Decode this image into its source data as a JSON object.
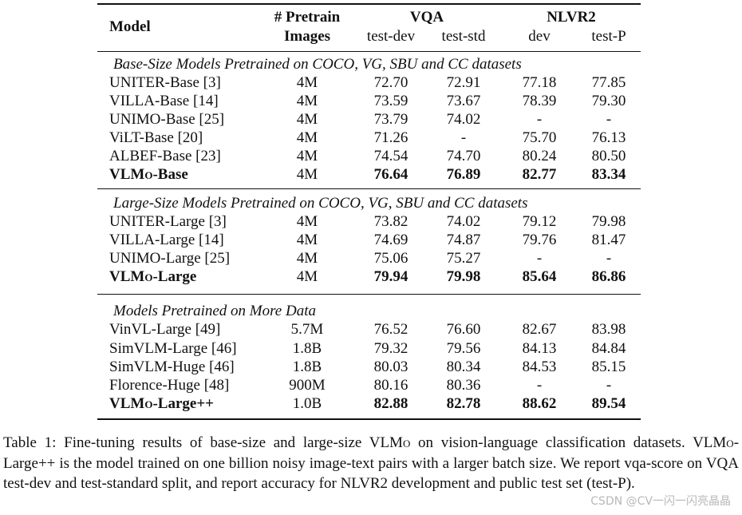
{
  "table": {
    "header": {
      "model": "Model",
      "pretrain_line1": "# Pretrain",
      "pretrain_line2": "Images",
      "vqa": "VQA",
      "nlvr2": "NLVR2",
      "vqa_test_dev": "test-dev",
      "vqa_test_std": "test-std",
      "nlvr2_dev": "dev",
      "nlvr2_test_p": "test-P"
    },
    "sections": [
      {
        "title": "Base-Size Models Pretrained on COCO, VG, SBU and CC datasets",
        "rows": [
          {
            "model": "UNITER-Base [3]",
            "pretrain": "4M",
            "test_dev": "72.70",
            "test_std": "72.91",
            "dev": "77.18",
            "test_p": "77.85"
          },
          {
            "model": "VILLA-Base [14]",
            "pretrain": "4M",
            "test_dev": "73.59",
            "test_std": "73.67",
            "dev": "78.39",
            "test_p": "79.30"
          },
          {
            "model": "UNIMO-Base [25]",
            "pretrain": "4M",
            "test_dev": "73.79",
            "test_std": "74.02",
            "dev": "-",
            "test_p": "-"
          },
          {
            "model": "ViLT-Base [20]",
            "pretrain": "4M",
            "test_dev": "71.26",
            "test_std": "-",
            "dev": "75.70",
            "test_p": "76.13"
          },
          {
            "model": "ALBEF-Base [23]",
            "pretrain": "4M",
            "test_dev": "74.54",
            "test_std": "74.70",
            "dev": "80.24",
            "test_p": "80.50"
          },
          {
            "model_prefix": "VLM",
            "model_sc": "o",
            "model_suffix": "-Base",
            "pretrain": "4M",
            "test_dev": "76.64",
            "test_std": "76.89",
            "dev": "82.77",
            "test_p": "83.34"
          }
        ]
      },
      {
        "title": "Large-Size Models Pretrained on COCO, VG, SBU and CC datasets",
        "rows": [
          {
            "model": "UNITER-Large [3]",
            "pretrain": "4M",
            "test_dev": "73.82",
            "test_std": "74.02",
            "dev": "79.12",
            "test_p": "79.98"
          },
          {
            "model": "VILLA-Large [14]",
            "pretrain": "4M",
            "test_dev": "74.69",
            "test_std": "74.87",
            "dev": "79.76",
            "test_p": "81.47"
          },
          {
            "model": "UNIMO-Large [25]",
            "pretrain": "4M",
            "test_dev": "75.06",
            "test_std": "75.27",
            "dev": "-",
            "test_p": "-"
          },
          {
            "model_prefix": "VLM",
            "model_sc": "o",
            "model_suffix": "-Large",
            "pretrain": "4M",
            "test_dev": "79.94",
            "test_std": "79.98",
            "dev": "85.64",
            "test_p": "86.86"
          }
        ]
      },
      {
        "title": "Models Pretrained on More Data",
        "rows": [
          {
            "model": "VinVL-Large [49]",
            "pretrain": "5.7M",
            "test_dev": "76.52",
            "test_std": "76.60",
            "dev": "82.67",
            "test_p": "83.98"
          },
          {
            "model": "SimVLM-Large [46]",
            "pretrain": "1.8B",
            "test_dev": "79.32",
            "test_std": "79.56",
            "dev": "84.13",
            "test_p": "84.84"
          },
          {
            "model": "SimVLM-Huge [46]",
            "pretrain": "1.8B",
            "test_dev": "80.03",
            "test_std": "80.34",
            "dev": "84.53",
            "test_p": "85.15"
          },
          {
            "model": "Florence-Huge [48]",
            "pretrain": "900M",
            "test_dev": "80.16",
            "test_std": "80.36",
            "dev": "-",
            "test_p": "-"
          },
          {
            "model_prefix": "VLM",
            "model_sc": "o",
            "model_suffix": "-Large++",
            "pretrain": "1.0B",
            "test_dev": "82.88",
            "test_std": "82.78",
            "dev": "88.62",
            "test_p": "89.54"
          }
        ]
      }
    ]
  },
  "caption": {
    "p1": "Table 1: Fine-tuning results of base-size and large-size VLM",
    "p1_sc": "o",
    "p2": " on vision-language classification datasets. VLM",
    "p2_sc": "o",
    "p3": "-Large++ is the model trained on one billion noisy image-text pairs with a larger batch size. We report vqa-score on VQA test-dev and test-standard split, and report accuracy for NLVR2 development and public test set (test-P)."
  },
  "watermark": "CSDN @CV一闪一闪亮晶晶"
}
